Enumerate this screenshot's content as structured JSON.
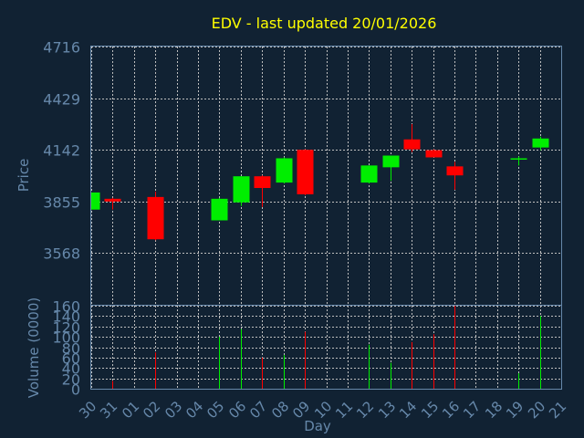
{
  "colors": {
    "background": "#112233",
    "up": "#00ee00",
    "down": "#ff0000",
    "grid": "#c0c0c0",
    "axis": "#6688aa",
    "title": "#ffff00",
    "text": "#6688aa"
  },
  "chart_data": {
    "type": "candlestick",
    "title": "EDV - last updated 20/01/2026",
    "xlabel": "Day",
    "grid": true,
    "price_panel": {
      "ylabel": "Price",
      "yticks": [
        3568,
        3855,
        4142,
        4429,
        4716
      ],
      "ylim": [
        3281,
        4716
      ]
    },
    "volume_panel": {
      "ylabel": "Volume (0000)",
      "yticks": [
        0,
        20,
        40,
        60,
        80,
        100,
        120,
        140,
        160
      ],
      "ylim": [
        0,
        160
      ]
    },
    "x_tick_labels": [
      "30",
      "31",
      "01",
      "02",
      "03",
      "04",
      "05",
      "06",
      "07",
      "08",
      "09",
      "10",
      "11",
      "12",
      "13",
      "14",
      "15",
      "16",
      "17",
      "18",
      "19",
      "20",
      "21"
    ],
    "candles": [
      {
        "day": "30",
        "open": 3810,
        "high": 3905,
        "low": 3810,
        "close": 3905,
        "volume": 0
      },
      {
        "day": "31",
        "open": 3870,
        "high": 3875,
        "low": 3810,
        "close": 3855,
        "volume": 15
      },
      {
        "day": "02",
        "open": 3880,
        "high": 3910,
        "low": 3640,
        "close": 3645,
        "volume": 70
      },
      {
        "day": "05",
        "open": 3750,
        "high": 3875,
        "low": 3750,
        "close": 3870,
        "volume": 100
      },
      {
        "day": "06",
        "open": 3850,
        "high": 3995,
        "low": 3830,
        "close": 3995,
        "volume": 115
      },
      {
        "day": "07",
        "open": 3995,
        "high": 4000,
        "low": 3825,
        "close": 3930,
        "volume": 60
      },
      {
        "day": "08",
        "open": 3960,
        "high": 4100,
        "low": 3955,
        "close": 4095,
        "volume": 65
      },
      {
        "day": "09",
        "open": 4142,
        "high": 4145,
        "low": 3890,
        "close": 3895,
        "volume": 110
      },
      {
        "day": "12",
        "open": 3960,
        "high": 4055,
        "low": 3955,
        "close": 4055,
        "volume": 85
      },
      {
        "day": "13",
        "open": 4045,
        "high": 4110,
        "low": 3970,
        "close": 4110,
        "volume": 50
      },
      {
        "day": "14",
        "open": 4200,
        "high": 4285,
        "low": 4130,
        "close": 4145,
        "volume": 90
      },
      {
        "day": "15",
        "open": 4140,
        "high": 4145,
        "low": 4100,
        "close": 4100,
        "volume": 105
      },
      {
        "day": "16",
        "open": 4050,
        "high": 4075,
        "low": 3920,
        "close": 4000,
        "volume": 160
      },
      {
        "day": "19",
        "open": 4095,
        "high": 4105,
        "low": 4055,
        "close": 4095,
        "volume": 30
      },
      {
        "day": "20",
        "open": 4155,
        "high": 4215,
        "low": 4140,
        "close": 4205,
        "volume": 140
      }
    ]
  }
}
